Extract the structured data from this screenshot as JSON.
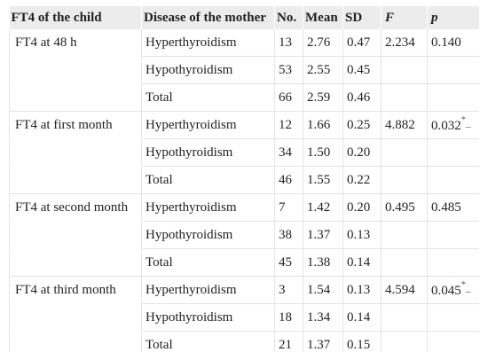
{
  "table": {
    "headers": {
      "variable": "FT4 of the child",
      "disease": "Disease of the mother",
      "no": "No.",
      "mean": "Mean",
      "sd": "SD",
      "f": "F",
      "p": "p"
    },
    "rows": [
      {
        "variable": "FT4 at 48 h",
        "disease": "Hyperthyroidism",
        "no": "13",
        "mean": "2.76",
        "sd": "0.47",
        "f": "2.234",
        "p": "0.140",
        "p_mark": "",
        "p_dash": ""
      },
      {
        "variable": "",
        "disease": "Hypothyroidism",
        "no": "53",
        "mean": "2.55",
        "sd": "0.45",
        "f": "",
        "p": "",
        "p_mark": "",
        "p_dash": ""
      },
      {
        "variable": "",
        "disease": "Total",
        "no": "66",
        "mean": "2.59",
        "sd": "0.46",
        "f": "",
        "p": "",
        "p_mark": "",
        "p_dash": ""
      },
      {
        "variable": "FT4 at first month",
        "disease": "Hyperthyroidism",
        "no": "12",
        "mean": "1.66",
        "sd": "0.25",
        "f": "4.882",
        "p": "0.032",
        "p_mark": "*",
        "p_dash": "–"
      },
      {
        "variable": "",
        "disease": "Hypothyroidism",
        "no": "34",
        "mean": "1.50",
        "sd": "0.20",
        "f": "",
        "p": "",
        "p_mark": "",
        "p_dash": ""
      },
      {
        "variable": "",
        "disease": "Total",
        "no": "46",
        "mean": "1.55",
        "sd": "0.22",
        "f": "",
        "p": "",
        "p_mark": "",
        "p_dash": ""
      },
      {
        "variable": "FT4 at second month",
        "disease": "Hyperthyroidism",
        "no": "7",
        "mean": "1.42",
        "sd": "0.20",
        "f": "0.495",
        "p": "0.485",
        "p_mark": "",
        "p_dash": ""
      },
      {
        "variable": "",
        "disease": "Hypothyroidism",
        "no": "38",
        "mean": "1.37",
        "sd": "0.13",
        "f": "",
        "p": "",
        "p_mark": "",
        "p_dash": ""
      },
      {
        "variable": "",
        "disease": "Total",
        "no": "45",
        "mean": "1.38",
        "sd": "0.14",
        "f": "",
        "p": "",
        "p_mark": "",
        "p_dash": ""
      },
      {
        "variable": "FT4 at third month",
        "disease": "Hyperthyroidism",
        "no": "3",
        "mean": "1.54",
        "sd": "0.13",
        "f": "4.594",
        "p": "0.045",
        "p_mark": "*",
        "p_dash": "–"
      },
      {
        "variable": "",
        "disease": "Hypothyroidism",
        "no": "18",
        "mean": "1.34",
        "sd": "0.14",
        "f": "",
        "p": "",
        "p_mark": "",
        "p_dash": ""
      },
      {
        "variable": "",
        "disease": "Total",
        "no": "21",
        "mean": "1.37",
        "sd": "0.15",
        "f": "",
        "p": "",
        "p_mark": "",
        "p_dash": ""
      }
    ]
  },
  "colors": {
    "header_bg": "#ececec",
    "grid": "#e3e3e3",
    "footnote_link": "#2a53c9"
  }
}
